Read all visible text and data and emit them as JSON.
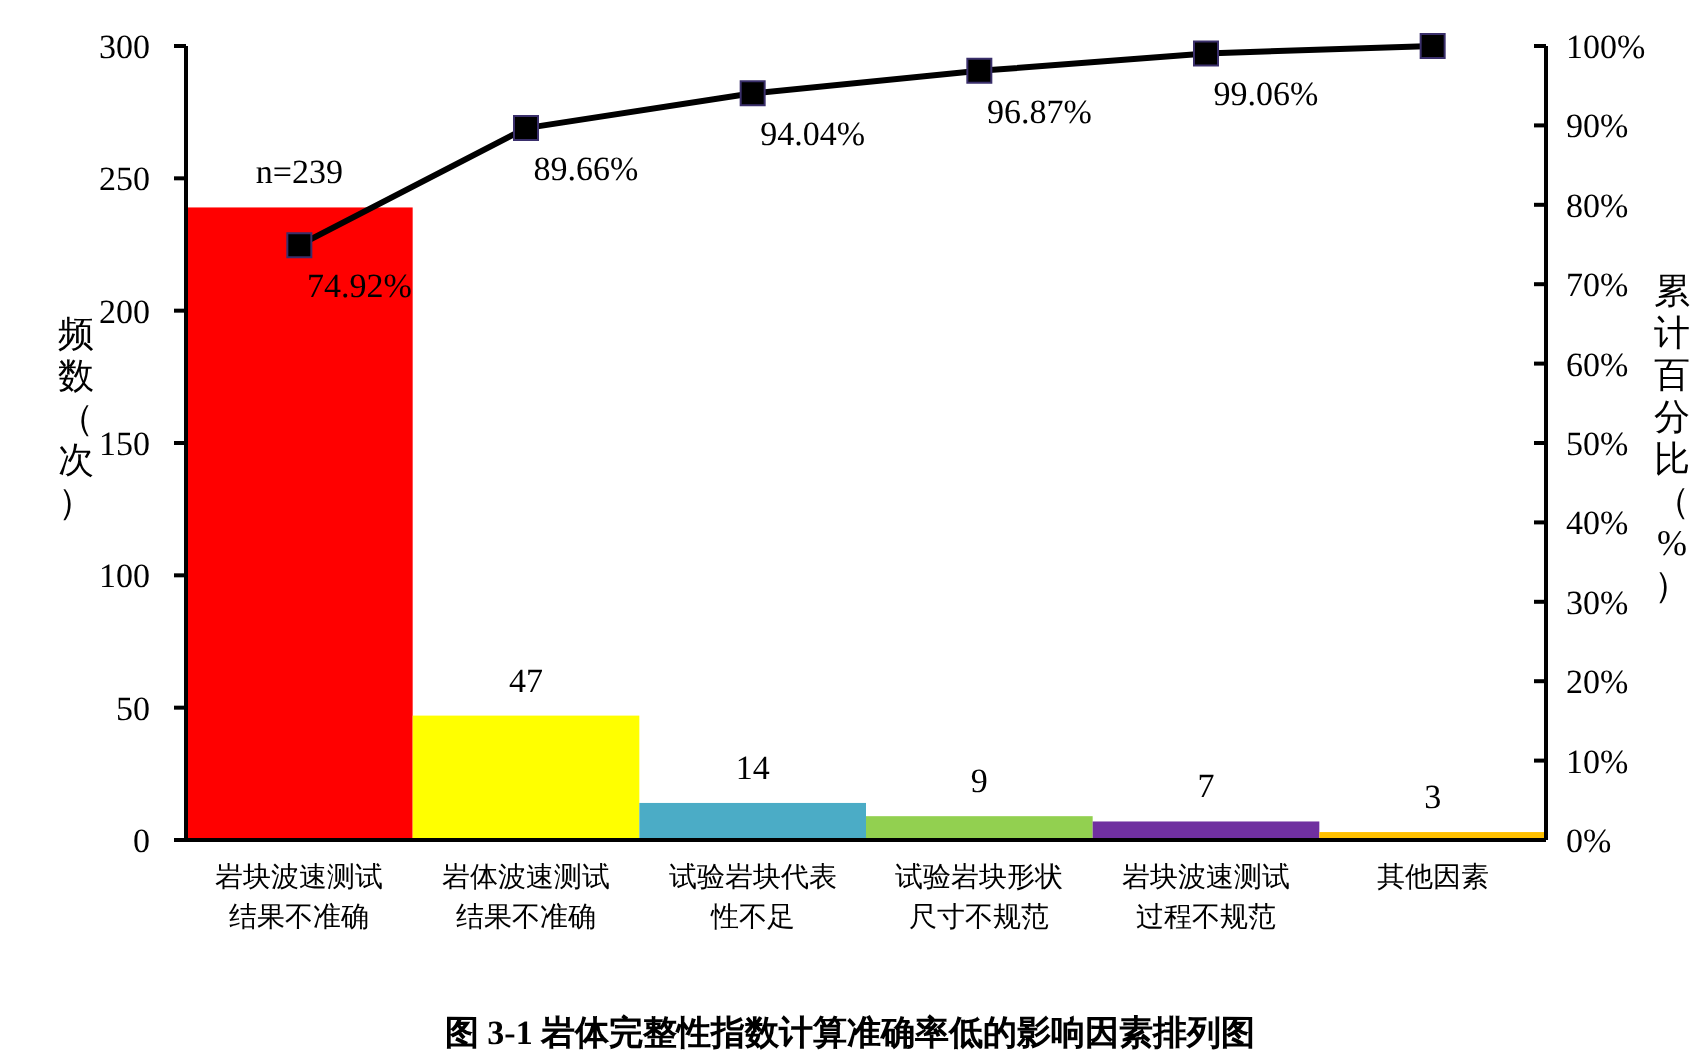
{
  "chart_data": {
    "type": "bar",
    "title": "图 3-1  岩体完整性指数计算准确率低的影响因素排列图",
    "ylabel": "频数（次）",
    "y2label": "累计百分比（%）",
    "categories": [
      "岩块波速测试结果不准确",
      "岩体波速测试结果不准确",
      "试验岩块代表性不足",
      "试验岩块形状尺寸不规范",
      "岩块波速测试过程不规范",
      "其他因素"
    ],
    "series": [
      {
        "colors": [
          "#ff0000",
          "#ffff00",
          "#4bacc6",
          "#92d050",
          "#7030a0",
          "#ffc000"
        ],
        "values": [
          239,
          47,
          14,
          9,
          7,
          3
        ],
        "value_labels": [
          "n=239",
          "47",
          "14",
          "9",
          "7",
          "3"
        ]
      },
      {
        "type": "line",
        "axis": "y2",
        "color": "#000000",
        "marker": "square",
        "values": [
          74.92,
          89.66,
          94.04,
          96.87,
          99.06,
          100
        ],
        "value_labels": [
          "74.92%",
          "89.66%",
          "94.04%",
          "96.87%",
          "99.06%",
          null
        ]
      }
    ],
    "ylim": [
      0,
      300
    ],
    "yticks": [
      0,
      50,
      100,
      150,
      200,
      250,
      300
    ],
    "y2lim": [
      0,
      100
    ],
    "y2ticks": [
      {
        "value": 0,
        "label": "0%"
      },
      {
        "value": 10,
        "label": "10%"
      },
      {
        "value": 20,
        "label": "20%"
      },
      {
        "value": 30,
        "label": "30%"
      },
      {
        "value": 40,
        "label": "40%"
      },
      {
        "value": 50,
        "label": "50%"
      },
      {
        "value": 60,
        "label": "60%"
      },
      {
        "value": 70,
        "label": "70%"
      },
      {
        "value": 80,
        "label": "80%"
      },
      {
        "value": 90,
        "label": "90%"
      },
      {
        "value": 100,
        "label": "100%"
      }
    ],
    "grid": false
  }
}
